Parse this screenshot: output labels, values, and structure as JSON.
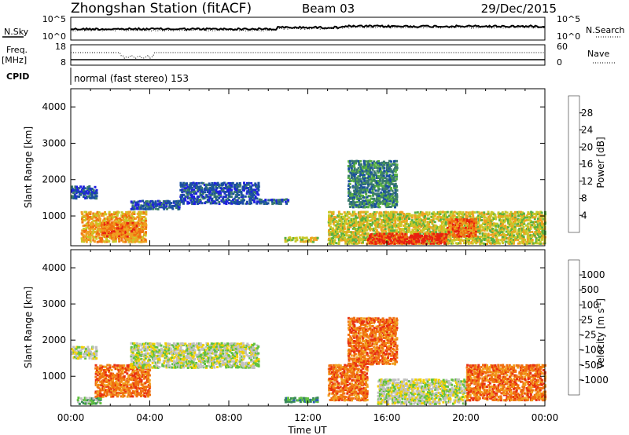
{
  "header": {
    "station": "Zhongshan Station (fitACF)",
    "beam": "Beam 03",
    "date": "29/Dec/2015"
  },
  "strips": {
    "nsky_label": "N.Sky",
    "nsky_ticks": [
      "10^5",
      "10^0"
    ],
    "nsearch_label": "N.Search",
    "nsearch_ticks": [
      "10^5",
      "10^0"
    ],
    "freq_label": "Freq.",
    "freq_unit": "[MHz]",
    "freq_ticks": [
      "18",
      "8"
    ],
    "nave_label": "Nave",
    "nave_ticks": [
      "60",
      "0"
    ],
    "cpid_label": "CPID",
    "cpid_text": "normal (fast stereo) 153"
  },
  "chart_data": [
    {
      "type": "heatmap",
      "panel": "power",
      "xlabel": "Time UT",
      "ylabel": "Slant Range [km]",
      "xlim": [
        "00:00",
        "24:00"
      ],
      "x_ticks": [
        "00:00",
        "04:00",
        "08:00",
        "12:00",
        "16:00",
        "20:00",
        "00:00"
      ],
      "ylim": [
        180,
        4500
      ],
      "y_ticks": [
        1000,
        2000,
        3000,
        4000
      ],
      "colorbar": {
        "label": "Power [dB]",
        "ticks": [
          "28",
          "24",
          "20",
          "16",
          "12",
          "8",
          "4"
        ],
        "range": [
          0,
          30
        ],
        "colors": [
          "#2020e0",
          "#1a4fa0",
          "#3a7b6e",
          "#58b040",
          "#c8c828",
          "#f0a020",
          "#f07010",
          "#e82010"
        ]
      },
      "echo_regions": [
        {
          "t0": 0.0,
          "t1": 1.3,
          "r0": 1450,
          "r1": 1800,
          "level": 1
        },
        {
          "t0": 0.5,
          "t1": 3.8,
          "r0": 250,
          "r1": 1100,
          "level": 5
        },
        {
          "t0": 1.5,
          "t1": 3.5,
          "r0": 400,
          "r1": 800,
          "level": 6
        },
        {
          "t0": 3.0,
          "t1": 5.5,
          "r0": 1150,
          "r1": 1400,
          "level": 1
        },
        {
          "t0": 5.5,
          "t1": 9.5,
          "r0": 1300,
          "r1": 1900,
          "level": 1
        },
        {
          "t0": 9.5,
          "t1": 11.0,
          "r0": 1300,
          "r1": 1450,
          "level": 1
        },
        {
          "t0": 10.8,
          "t1": 12.5,
          "r0": 250,
          "r1": 400,
          "level": 4
        },
        {
          "t0": 13.0,
          "t1": 24.0,
          "r0": 200,
          "r1": 1100,
          "level": 4
        },
        {
          "t0": 15.0,
          "t1": 19.0,
          "r0": 200,
          "r1": 500,
          "level": 7
        },
        {
          "t0": 19.0,
          "t1": 20.5,
          "r0": 400,
          "r1": 900,
          "level": 6
        },
        {
          "t0": 14.0,
          "t1": 16.5,
          "r0": 1200,
          "r1": 2500,
          "level": 2
        }
      ]
    },
    {
      "type": "heatmap",
      "panel": "velocity",
      "xlabel": "Time UT",
      "ylabel": "Slant Range [km]",
      "xlim": [
        "00:00",
        "24:00"
      ],
      "x_ticks": [
        "00:00",
        "04:00",
        "08:00",
        "12:00",
        "16:00",
        "20:00",
        "00:00"
      ],
      "ylim": [
        180,
        4500
      ],
      "y_ticks": [
        1000,
        2000,
        3000,
        4000
      ],
      "colorbar": {
        "label": "Velocity [m s^-1]",
        "ticks": [
          "1000",
          "500",
          "100",
          "25",
          "-25",
          "-100",
          "-500",
          "-1000"
        ],
        "colors": [
          "#2030d0",
          "#2a60b0",
          "#3a8a5a",
          "#60c040",
          "#c0c0c0",
          "#f0d000",
          "#f0a020",
          "#f07010",
          "#e83010"
        ]
      },
      "echo_regions": [
        {
          "t0": 0.0,
          "t1": 1.3,
          "r0": 1450,
          "r1": 1800,
          "level": 4
        },
        {
          "t0": 0.3,
          "t1": 1.5,
          "r0": 200,
          "r1": 400,
          "level": 3
        },
        {
          "t0": 1.2,
          "t1": 4.0,
          "r0": 400,
          "r1": 1300,
          "level": 7
        },
        {
          "t0": 3.0,
          "t1": 9.5,
          "r0": 1200,
          "r1": 1900,
          "level": 4
        },
        {
          "t0": 10.8,
          "t1": 12.5,
          "r0": 250,
          "r1": 400,
          "level": 2
        },
        {
          "t0": 13.0,
          "t1": 15.0,
          "r0": 300,
          "r1": 1300,
          "level": 7
        },
        {
          "t0": 14.0,
          "t1": 16.5,
          "r0": 1300,
          "r1": 2600,
          "level": 7
        },
        {
          "t0": 15.5,
          "t1": 20.0,
          "r0": 200,
          "r1": 900,
          "level": 4
        },
        {
          "t0": 20.0,
          "t1": 24.0,
          "r0": 300,
          "r1": 1300,
          "level": 7
        }
      ]
    }
  ]
}
